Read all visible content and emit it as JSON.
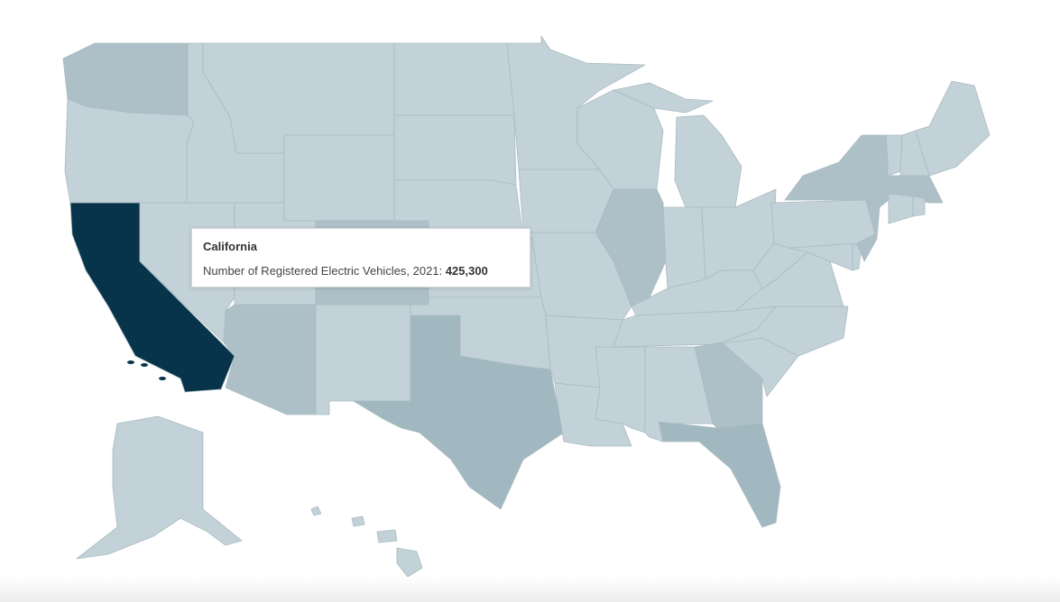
{
  "map": {
    "colors": {
      "light": "#c3d2d8",
      "medium": "#adc0c8",
      "dark": "#a2b8c1",
      "highlight": "#07344a",
      "border": "#a9bac1"
    },
    "state_shading": {
      "CA": "highlight",
      "TX": "dark",
      "FL": "dark",
      "WA": "medium",
      "IL": "medium",
      "NY": "medium",
      "MA": "medium",
      "NJ": "medium",
      "GA": "medium",
      "CO": "medium",
      "AZ": "medium"
    },
    "hovered_state": "California"
  },
  "tooltip": {
    "title": "California",
    "metric_label": "Number of Registered Electric Vehicles, 2021:",
    "metric_value": "425,300"
  }
}
